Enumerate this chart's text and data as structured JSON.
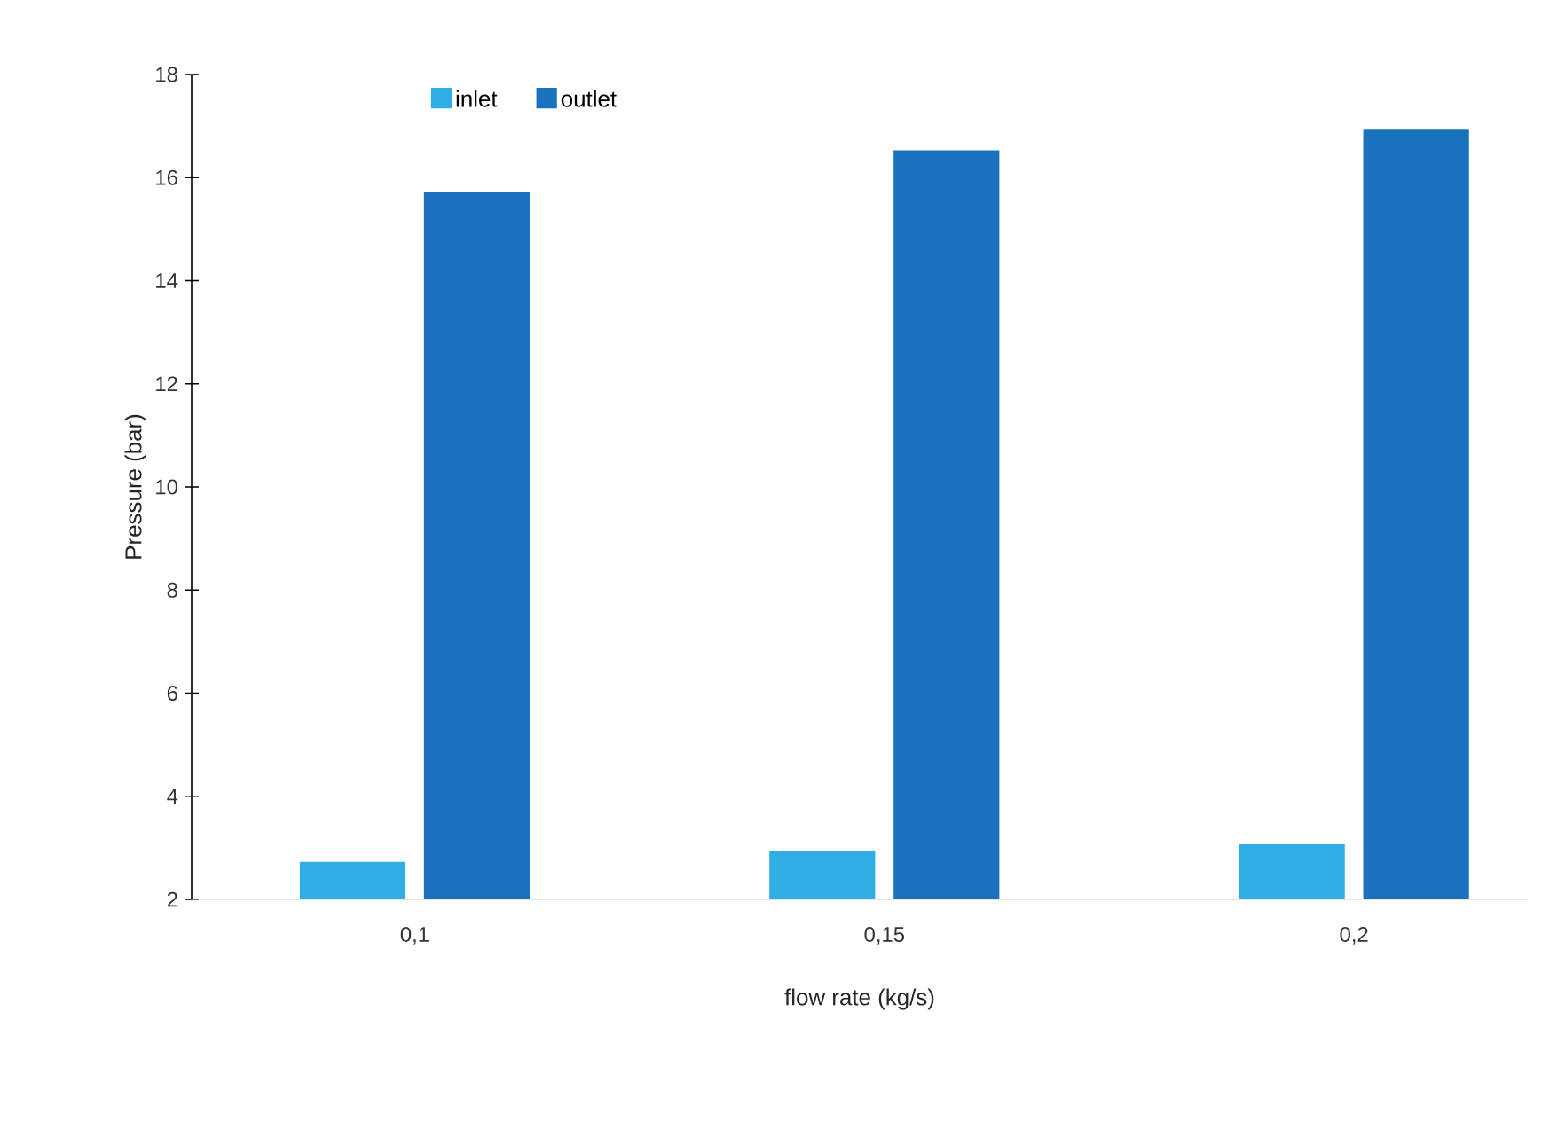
{
  "chart_data": {
    "type": "bar",
    "xlabel": "flow rate (kg/s)",
    "ylabel": "Pressure (bar)",
    "categories": [
      "0,1",
      "0,15",
      "0,2"
    ],
    "series": [
      {
        "name": "inlet",
        "color": "#2eaee4",
        "values": [
          2.7,
          2.9,
          3.05
        ]
      },
      {
        "name": "outlet",
        "color": "#1a72bd",
        "values": [
          15.7,
          16.5,
          16.9
        ]
      }
    ],
    "ylim": [
      2,
      18
    ],
    "yticks": [
      2,
      4,
      6,
      8,
      10,
      12,
      14,
      16,
      18
    ],
    "grid": false,
    "legend": "top"
  }
}
